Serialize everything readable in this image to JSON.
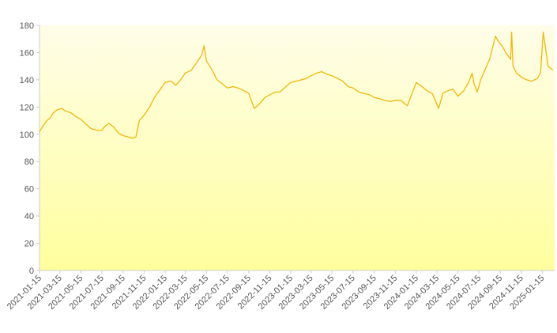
{
  "chart_data": {
    "type": "area",
    "title": "",
    "xlabel": "",
    "ylabel": "",
    "ylim": [
      0,
      180
    ],
    "yticks": [
      0,
      20,
      40,
      60,
      80,
      100,
      120,
      140,
      160,
      180
    ],
    "xlim": [
      "2021-01-15",
      "2025-02-20"
    ],
    "xticks": [
      "2021-01-15",
      "2021-03-15",
      "2021-05-15",
      "2021-07-15",
      "2021-09-15",
      "2021-11-15",
      "2022-01-15",
      "2022-03-15",
      "2022-05-15",
      "2022-07-15",
      "2022-09-15",
      "2022-11-15",
      "2023-01-15",
      "2023-03-15",
      "2023-05-15",
      "2023-07-15",
      "2023-09-15",
      "2023-11-15",
      "2024-01-15",
      "2024-03-15",
      "2024-05-15",
      "2024-07-15",
      "2024-09-15",
      "2024-11-15",
      "2025-01-15"
    ],
    "grid": false,
    "legend": "none",
    "colors": {
      "line": "#f2b705",
      "fill_top": "#fffde8",
      "fill_bottom": "#ffff9e",
      "axis": "#cccccc"
    },
    "series": [
      {
        "x": [
          "2021-01-15",
          "2021-01-25",
          "2021-02-05",
          "2021-02-15",
          "2021-02-25",
          "2021-03-08",
          "2021-03-20",
          "2021-04-01",
          "2021-04-15",
          "2021-05-01",
          "2021-05-15",
          "2021-06-01",
          "2021-06-15",
          "2021-07-01",
          "2021-07-15",
          "2021-07-25",
          "2021-08-05",
          "2021-08-20",
          "2021-09-01",
          "2021-09-15",
          "2021-10-01",
          "2021-10-12",
          "2021-10-22",
          "2021-11-01",
          "2021-11-15",
          "2021-12-01",
          "2021-12-15",
          "2022-01-01",
          "2022-01-15",
          "2022-02-01",
          "2022-02-15",
          "2022-03-01",
          "2022-03-15",
          "2022-04-01",
          "2022-04-15",
          "2022-05-01",
          "2022-05-08",
          "2022-05-15",
          "2022-06-01",
          "2022-06-15",
          "2022-07-01",
          "2022-07-15",
          "2022-08-01",
          "2022-08-15",
          "2022-09-01",
          "2022-09-15",
          "2022-10-01",
          "2022-10-15",
          "2022-11-01",
          "2022-11-15",
          "2022-12-01",
          "2022-12-15",
          "2023-01-01",
          "2023-01-15",
          "2023-02-01",
          "2023-02-15",
          "2023-03-01",
          "2023-03-15",
          "2023-04-01",
          "2023-04-15",
          "2023-05-01",
          "2023-05-15",
          "2023-06-01",
          "2023-06-15",
          "2023-07-01",
          "2023-07-15",
          "2023-08-01",
          "2023-08-15",
          "2023-09-01",
          "2023-09-15",
          "2023-10-01",
          "2023-10-15",
          "2023-11-01",
          "2023-11-15",
          "2023-12-01",
          "2023-12-10",
          "2023-12-20",
          "2024-01-15",
          "2024-02-01",
          "2024-02-15",
          "2024-03-01",
          "2024-03-10",
          "2024-03-20",
          "2024-04-01",
          "2024-04-15",
          "2024-05-01",
          "2024-05-15",
          "2024-06-01",
          "2024-06-15",
          "2024-06-25",
          "2024-07-01",
          "2024-07-10",
          "2024-07-20",
          "2024-08-01",
          "2024-08-15",
          "2024-09-01",
          "2024-09-10",
          "2024-09-20",
          "2024-10-01",
          "2024-10-15",
          "2024-10-18",
          "2024-10-22",
          "2024-11-01",
          "2024-11-15",
          "2024-12-01",
          "2024-12-15",
          "2025-01-01",
          "2025-01-10",
          "2025-01-18",
          "2025-02-01",
          "2025-02-15"
        ],
        "values": [
          102,
          106,
          110,
          112,
          116,
          118,
          119,
          117,
          116,
          113,
          111,
          107,
          104,
          103,
          103,
          106,
          108,
          105,
          101,
          99,
          98,
          97,
          98,
          110,
          114,
          120,
          127,
          133,
          138,
          139,
          136,
          140,
          145,
          147,
          152,
          158,
          165,
          154,
          147,
          140,
          137,
          134,
          135,
          134,
          132,
          130,
          119,
          122,
          127,
          129,
          131,
          131,
          135,
          138,
          139,
          140,
          141,
          143,
          145,
          146,
          144,
          143,
          141,
          139,
          135,
          134,
          131,
          130,
          129,
          127,
          126,
          125,
          124,
          125,
          125,
          123,
          121,
          138,
          135,
          132,
          130,
          125,
          119,
          130,
          132,
          133,
          128,
          132,
          138,
          145,
          137,
          131,
          140,
          147,
          155,
          172,
          168,
          165,
          160,
          155,
          175,
          150,
          145,
          142,
          140,
          139,
          141,
          145,
          175,
          150,
          147
        ]
      }
    ]
  }
}
